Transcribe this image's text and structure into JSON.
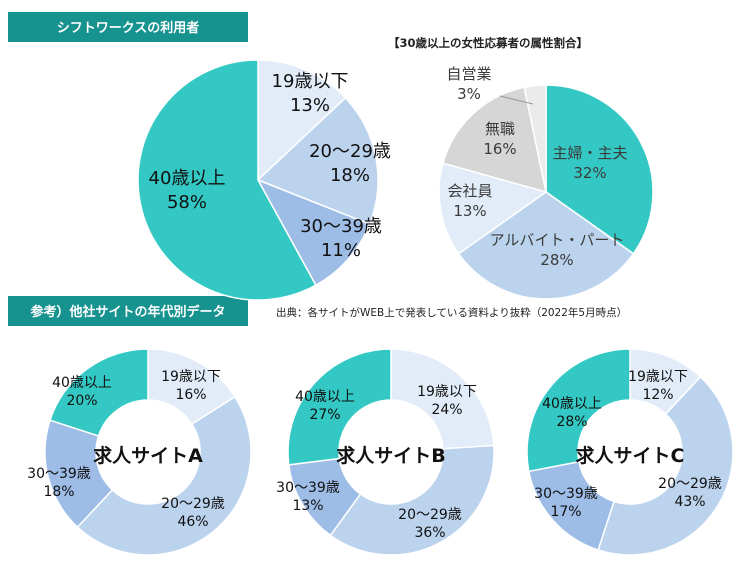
{
  "colors": {
    "banner": "#16928f",
    "teal": "#33c8c3",
    "light_blue": "#e2ecf8",
    "mid_blue": "#bcd3ee",
    "blue": "#9dbce6",
    "gray": "#d6d6d6",
    "light_gray": "#ebebeb",
    "text_dark": "#222222",
    "text_gray": "#3b3b3b"
  },
  "header": {
    "users_banner": "シフトワークスの利用者",
    "competitors_banner": "参考）他社サイトの年代別データ",
    "source_note": "出典：各サイトがWEB上で発表している資料より抜粋（2022年5月時点）"
  },
  "chart_data": [
    {
      "type": "pie",
      "title": "",
      "slices": [
        {
          "label": "19歳以下",
          "value": 13,
          "pct_text": "13%",
          "color": "#e2ecf8"
        },
        {
          "label": "20～29歳",
          "value": 18,
          "pct_text": "18%",
          "color": "#bcd3ee"
        },
        {
          "label": "30～39歳",
          "value": 11,
          "pct_text": "11%",
          "color": "#9dbce6"
        },
        {
          "label": "40歳以上",
          "value": 58,
          "pct_text": "58%",
          "color": "#33c8c3"
        }
      ]
    },
    {
      "type": "pie",
      "title": "【30歳以上の女性応募者の属性割合】",
      "slices": [
        {
          "label": "主婦・主夫",
          "value": 32,
          "pct_text": "32%",
          "color": "#33c8c3"
        },
        {
          "label": "アルバイト・パート",
          "value": 28,
          "pct_text": "28%",
          "color": "#bcd3ee"
        },
        {
          "label": "会社員",
          "value": 13,
          "pct_text": "13%",
          "color": "#e2ecf8"
        },
        {
          "label": "無職",
          "value": 16,
          "pct_text": "16%",
          "color": "#d6d6d6"
        },
        {
          "label": "自営業",
          "value": 3,
          "pct_text": "3%",
          "color": "#ebebeb"
        }
      ]
    },
    {
      "type": "pie",
      "title": "求人サイトA",
      "slices": [
        {
          "label": "19歳以下",
          "value": 16,
          "pct_text": "16%",
          "color": "#e2ecf8"
        },
        {
          "label": "20～29歳",
          "value": 46,
          "pct_text": "46%",
          "color": "#bcd3ee"
        },
        {
          "label": "30～39歳",
          "value": 18,
          "pct_text": "18%",
          "color": "#9dbce6"
        },
        {
          "label": "40歳以上",
          "value": 20,
          "pct_text": "20%",
          "color": "#33c8c3"
        }
      ]
    },
    {
      "type": "pie",
      "title": "求人サイトB",
      "slices": [
        {
          "label": "19歳以下",
          "value": 24,
          "pct_text": "24%",
          "color": "#e2ecf8"
        },
        {
          "label": "20～29歳",
          "value": 36,
          "pct_text": "36%",
          "color": "#bcd3ee"
        },
        {
          "label": "30～39歳",
          "value": 13,
          "pct_text": "13%",
          "color": "#9dbce6"
        },
        {
          "label": "40歳以上",
          "value": 27,
          "pct_text": "27%",
          "color": "#33c8c3"
        }
      ]
    },
    {
      "type": "pie",
      "title": "求人サイトC",
      "slices": [
        {
          "label": "19歳以下",
          "value": 12,
          "pct_text": "12%",
          "color": "#e2ecf8"
        },
        {
          "label": "20～29歳",
          "value": 43,
          "pct_text": "43%",
          "color": "#bcd3ee"
        },
        {
          "label": "30～39歳",
          "value": 17,
          "pct_text": "17%",
          "color": "#9dbce6"
        },
        {
          "label": "40歳以上",
          "value": 28,
          "pct_text": "28%",
          "color": "#33c8c3"
        }
      ]
    }
  ]
}
